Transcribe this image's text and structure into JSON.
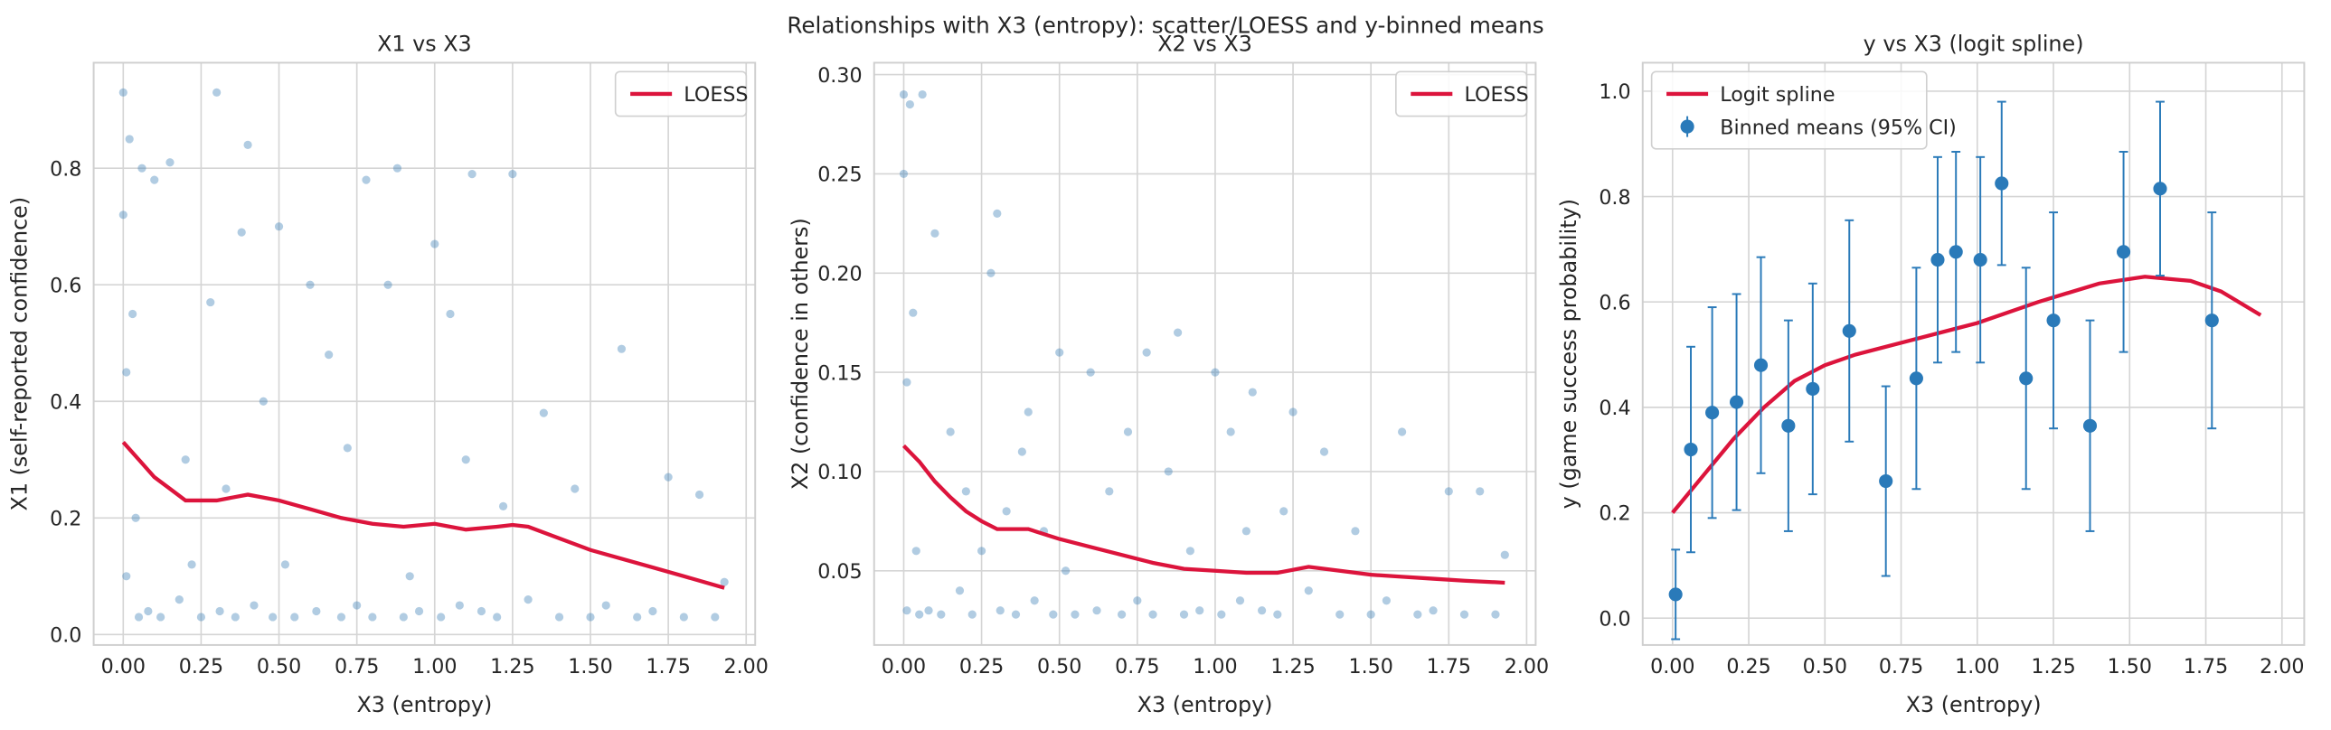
{
  "title": "Relationships with X3 (entropy): scatter/LOESS and y-binned means",
  "chart_data": [
    {
      "type": "scatter",
      "title": "X1 vs X3",
      "xlabel": "X3 (entropy)",
      "ylabel": "X1 (self-reported confidence)",
      "xlim": [
        -0.095,
        2.029
      ],
      "ylim": [
        -0.018,
        0.981
      ],
      "grid": true,
      "legend": "upper right",
      "xticks": [
        {
          "value": 0,
          "label": "0.00"
        },
        0.25,
        {
          "value": 0.5,
          "label": "0.50"
        },
        0.75,
        {
          "value": 1,
          "label": "1.00"
        },
        1.25,
        {
          "value": 1.5,
          "label": "1.50"
        },
        1.75,
        {
          "value": 2,
          "label": "2.00"
        }
      ],
      "yticks": [
        {
          "value": 0,
          "label": "0.0"
        },
        0.2,
        0.4,
        0.6,
        0.8
      ],
      "series": [
        {
          "kind": "scatter",
          "color": "#3b7fb6",
          "x": [
            0,
            0,
            0.01,
            0.01,
            0.02,
            0.03,
            0.04,
            0.05,
            0.06,
            0.08,
            0.1,
            0.12,
            0.15,
            0.18,
            0.2,
            0.22,
            0.25,
            0.28,
            0.3,
            0.31,
            0.33,
            0.36,
            0.38,
            0.4,
            0.42,
            0.45,
            0.48,
            0.5,
            0.52,
            0.55,
            0.6,
            0.62,
            0.66,
            0.7,
            0.72,
            0.75,
            0.78,
            0.8,
            0.85,
            0.88,
            0.9,
            0.92,
            0.95,
            1.0,
            1.02,
            1.05,
            1.08,
            1.1,
            1.12,
            1.15,
            1.2,
            1.22,
            1.25,
            1.3,
            1.35,
            1.4,
            1.45,
            1.5,
            1.55,
            1.6,
            1.65,
            1.7,
            1.75,
            1.8,
            1.85,
            1.9,
            1.93
          ],
          "y": [
            0.93,
            0.72,
            0.1,
            0.45,
            0.85,
            0.55,
            0.2,
            0.03,
            0.8,
            0.04,
            0.78,
            0.03,
            0.81,
            0.06,
            0.3,
            0.12,
            0.03,
            0.57,
            0.93,
            0.04,
            0.25,
            0.03,
            0.69,
            0.84,
            0.05,
            0.4,
            0.03,
            0.7,
            0.12,
            0.03,
            0.6,
            0.04,
            0.48,
            0.03,
            0.32,
            0.05,
            0.78,
            0.03,
            0.6,
            0.8,
            0.03,
            0.1,
            0.04,
            0.67,
            0.03,
            0.55,
            0.05,
            0.3,
            0.79,
            0.04,
            0.03,
            0.22,
            0.79,
            0.06,
            0.38,
            0.03,
            0.25,
            0.03,
            0.05,
            0.49,
            0.03,
            0.04,
            0.27,
            0.03,
            0.24,
            0.03,
            0.09
          ]
        },
        {
          "kind": "line",
          "name": "LOESS",
          "color": "#dc143c",
          "x": [
            0,
            0.05,
            0.1,
            0.15,
            0.2,
            0.25,
            0.3,
            0.35,
            0.4,
            0.5,
            0.6,
            0.7,
            0.8,
            0.9,
            1.0,
            1.1,
            1.2,
            1.25,
            1.3,
            1.4,
            1.5,
            1.6,
            1.7,
            1.8,
            1.93
          ],
          "y": [
            0.33,
            0.3,
            0.27,
            0.25,
            0.23,
            0.23,
            0.23,
            0.235,
            0.24,
            0.23,
            0.215,
            0.2,
            0.19,
            0.185,
            0.19,
            0.18,
            0.185,
            0.188,
            0.185,
            0.165,
            0.145,
            0.13,
            0.115,
            0.1,
            0.08
          ]
        }
      ]
    },
    {
      "type": "scatter",
      "title": "X2 vs X3",
      "xlabel": "X3 (entropy)",
      "ylabel": "X2 (confidence in others)",
      "xlim": [
        -0.095,
        2.029
      ],
      "ylim": [
        0.0126,
        0.306
      ],
      "grid": true,
      "legend": "upper right",
      "xticks": [
        {
          "value": 0,
          "label": "0.00"
        },
        0.25,
        {
          "value": 0.5,
          "label": "0.50"
        },
        0.75,
        {
          "value": 1,
          "label": "1.00"
        },
        1.25,
        {
          "value": 1.5,
          "label": "1.50"
        },
        1.75,
        {
          "value": 2,
          "label": "2.00"
        }
      ],
      "yticks": [
        0.05,
        {
          "value": 0.1,
          "label": "0.10"
        },
        0.15,
        {
          "value": 0.2,
          "label": "0.20"
        },
        0.25,
        {
          "value": 0.3,
          "label": "0.30"
        }
      ],
      "series": [
        {
          "kind": "scatter",
          "color": "#3b7fb6",
          "x": [
            0,
            0,
            0.01,
            0.01,
            0.02,
            0.03,
            0.04,
            0.05,
            0.06,
            0.08,
            0.1,
            0.12,
            0.15,
            0.18,
            0.2,
            0.22,
            0.25,
            0.28,
            0.3,
            0.31,
            0.33,
            0.36,
            0.38,
            0.4,
            0.42,
            0.45,
            0.48,
            0.5,
            0.52,
            0.55,
            0.6,
            0.62,
            0.66,
            0.7,
            0.72,
            0.75,
            0.78,
            0.8,
            0.85,
            0.88,
            0.9,
            0.92,
            0.95,
            1.0,
            1.02,
            1.05,
            1.08,
            1.1,
            1.12,
            1.15,
            1.2,
            1.22,
            1.25,
            1.3,
            1.35,
            1.4,
            1.45,
            1.5,
            1.55,
            1.6,
            1.65,
            1.7,
            1.75,
            1.8,
            1.85,
            1.9,
            1.93
          ],
          "y": [
            0.29,
            0.25,
            0.03,
            0.145,
            0.285,
            0.18,
            0.06,
            0.028,
            0.29,
            0.03,
            0.22,
            0.028,
            0.12,
            0.04,
            0.09,
            0.028,
            0.06,
            0.2,
            0.23,
            0.03,
            0.08,
            0.028,
            0.11,
            0.13,
            0.035,
            0.07,
            0.028,
            0.16,
            0.05,
            0.028,
            0.15,
            0.03,
            0.09,
            0.028,
            0.12,
            0.035,
            0.16,
            0.028,
            0.1,
            0.17,
            0.028,
            0.06,
            0.03,
            0.15,
            0.028,
            0.12,
            0.035,
            0.07,
            0.14,
            0.03,
            0.028,
            0.08,
            0.13,
            0.04,
            0.11,
            0.028,
            0.07,
            0.028,
            0.035,
            0.12,
            0.028,
            0.03,
            0.09,
            0.028,
            0.09,
            0.028,
            0.058
          ]
        },
        {
          "kind": "line",
          "name": "LOESS",
          "color": "#dc143c",
          "x": [
            0,
            0.05,
            0.1,
            0.15,
            0.2,
            0.25,
            0.3,
            0.4,
            0.5,
            0.6,
            0.7,
            0.8,
            0.9,
            1.0,
            1.1,
            1.2,
            1.3,
            1.4,
            1.5,
            1.6,
            1.7,
            1.8,
            1.93
          ],
          "y": [
            0.113,
            0.105,
            0.095,
            0.087,
            0.08,
            0.075,
            0.071,
            0.071,
            0.066,
            0.062,
            0.058,
            0.054,
            0.051,
            0.05,
            0.049,
            0.049,
            0.052,
            0.05,
            0.048,
            0.047,
            0.046,
            0.045,
            0.044
          ]
        }
      ]
    },
    {
      "type": "line",
      "title": "y vs X3 (logit spline)",
      "xlabel": "X3 (entropy)",
      "ylabel": "y (game success probability)",
      "xlim": [
        -0.098,
        2.073
      ],
      "ylim": [
        -0.051,
        1.054
      ],
      "grid": true,
      "legend": "upper left",
      "xticks": [
        {
          "value": 0,
          "label": "0.00"
        },
        0.25,
        {
          "value": 0.5,
          "label": "0.50"
        },
        0.75,
        {
          "value": 1,
          "label": "1.00"
        },
        1.25,
        {
          "value": 1.5,
          "label": "1.50"
        },
        1.75,
        {
          "value": 2,
          "label": "2.00"
        }
      ],
      "yticks": [
        {
          "value": 0,
          "label": "0.0"
        },
        0.2,
        0.4,
        0.6,
        0.8,
        {
          "value": 1,
          "label": "1.0"
        }
      ],
      "series": [
        {
          "kind": "line",
          "name": "Logit spline",
          "color": "#dc143c",
          "x": [
            0,
            0.1,
            0.2,
            0.3,
            0.4,
            0.5,
            0.6,
            0.8,
            1.0,
            1.2,
            1.4,
            1.55,
            1.7,
            1.8,
            1.93
          ],
          "y": [
            0.2,
            0.27,
            0.34,
            0.4,
            0.45,
            0.48,
            0.5,
            0.53,
            0.56,
            0.6,
            0.635,
            0.648,
            0.64,
            0.62,
            0.575
          ]
        },
        {
          "kind": "errorbar",
          "name": "Binned means (95% CI)",
          "color": "#2a7ab9",
          "x": [
            0.01,
            0.06,
            0.13,
            0.21,
            0.29,
            0.38,
            0.46,
            0.58,
            0.7,
            0.8,
            0.87,
            0.93,
            1.01,
            1.08,
            1.16,
            1.25,
            1.37,
            1.48,
            1.6,
            1.77
          ],
          "y": [
            0.045,
            0.32,
            0.39,
            0.41,
            0.48,
            0.365,
            0.435,
            0.545,
            0.26,
            0.455,
            0.68,
            0.695,
            0.68,
            0.825,
            0.455,
            0.565,
            0.365,
            0.695,
            0.815,
            0.565
          ],
          "error": [
            0.085,
            0.195,
            0.2,
            0.205,
            0.205,
            0.2,
            0.2,
            0.21,
            0.18,
            0.21,
            0.195,
            0.19,
            0.195,
            0.155,
            0.21,
            0.205,
            0.2,
            0.19,
            0.165,
            0.205
          ]
        }
      ]
    }
  ]
}
